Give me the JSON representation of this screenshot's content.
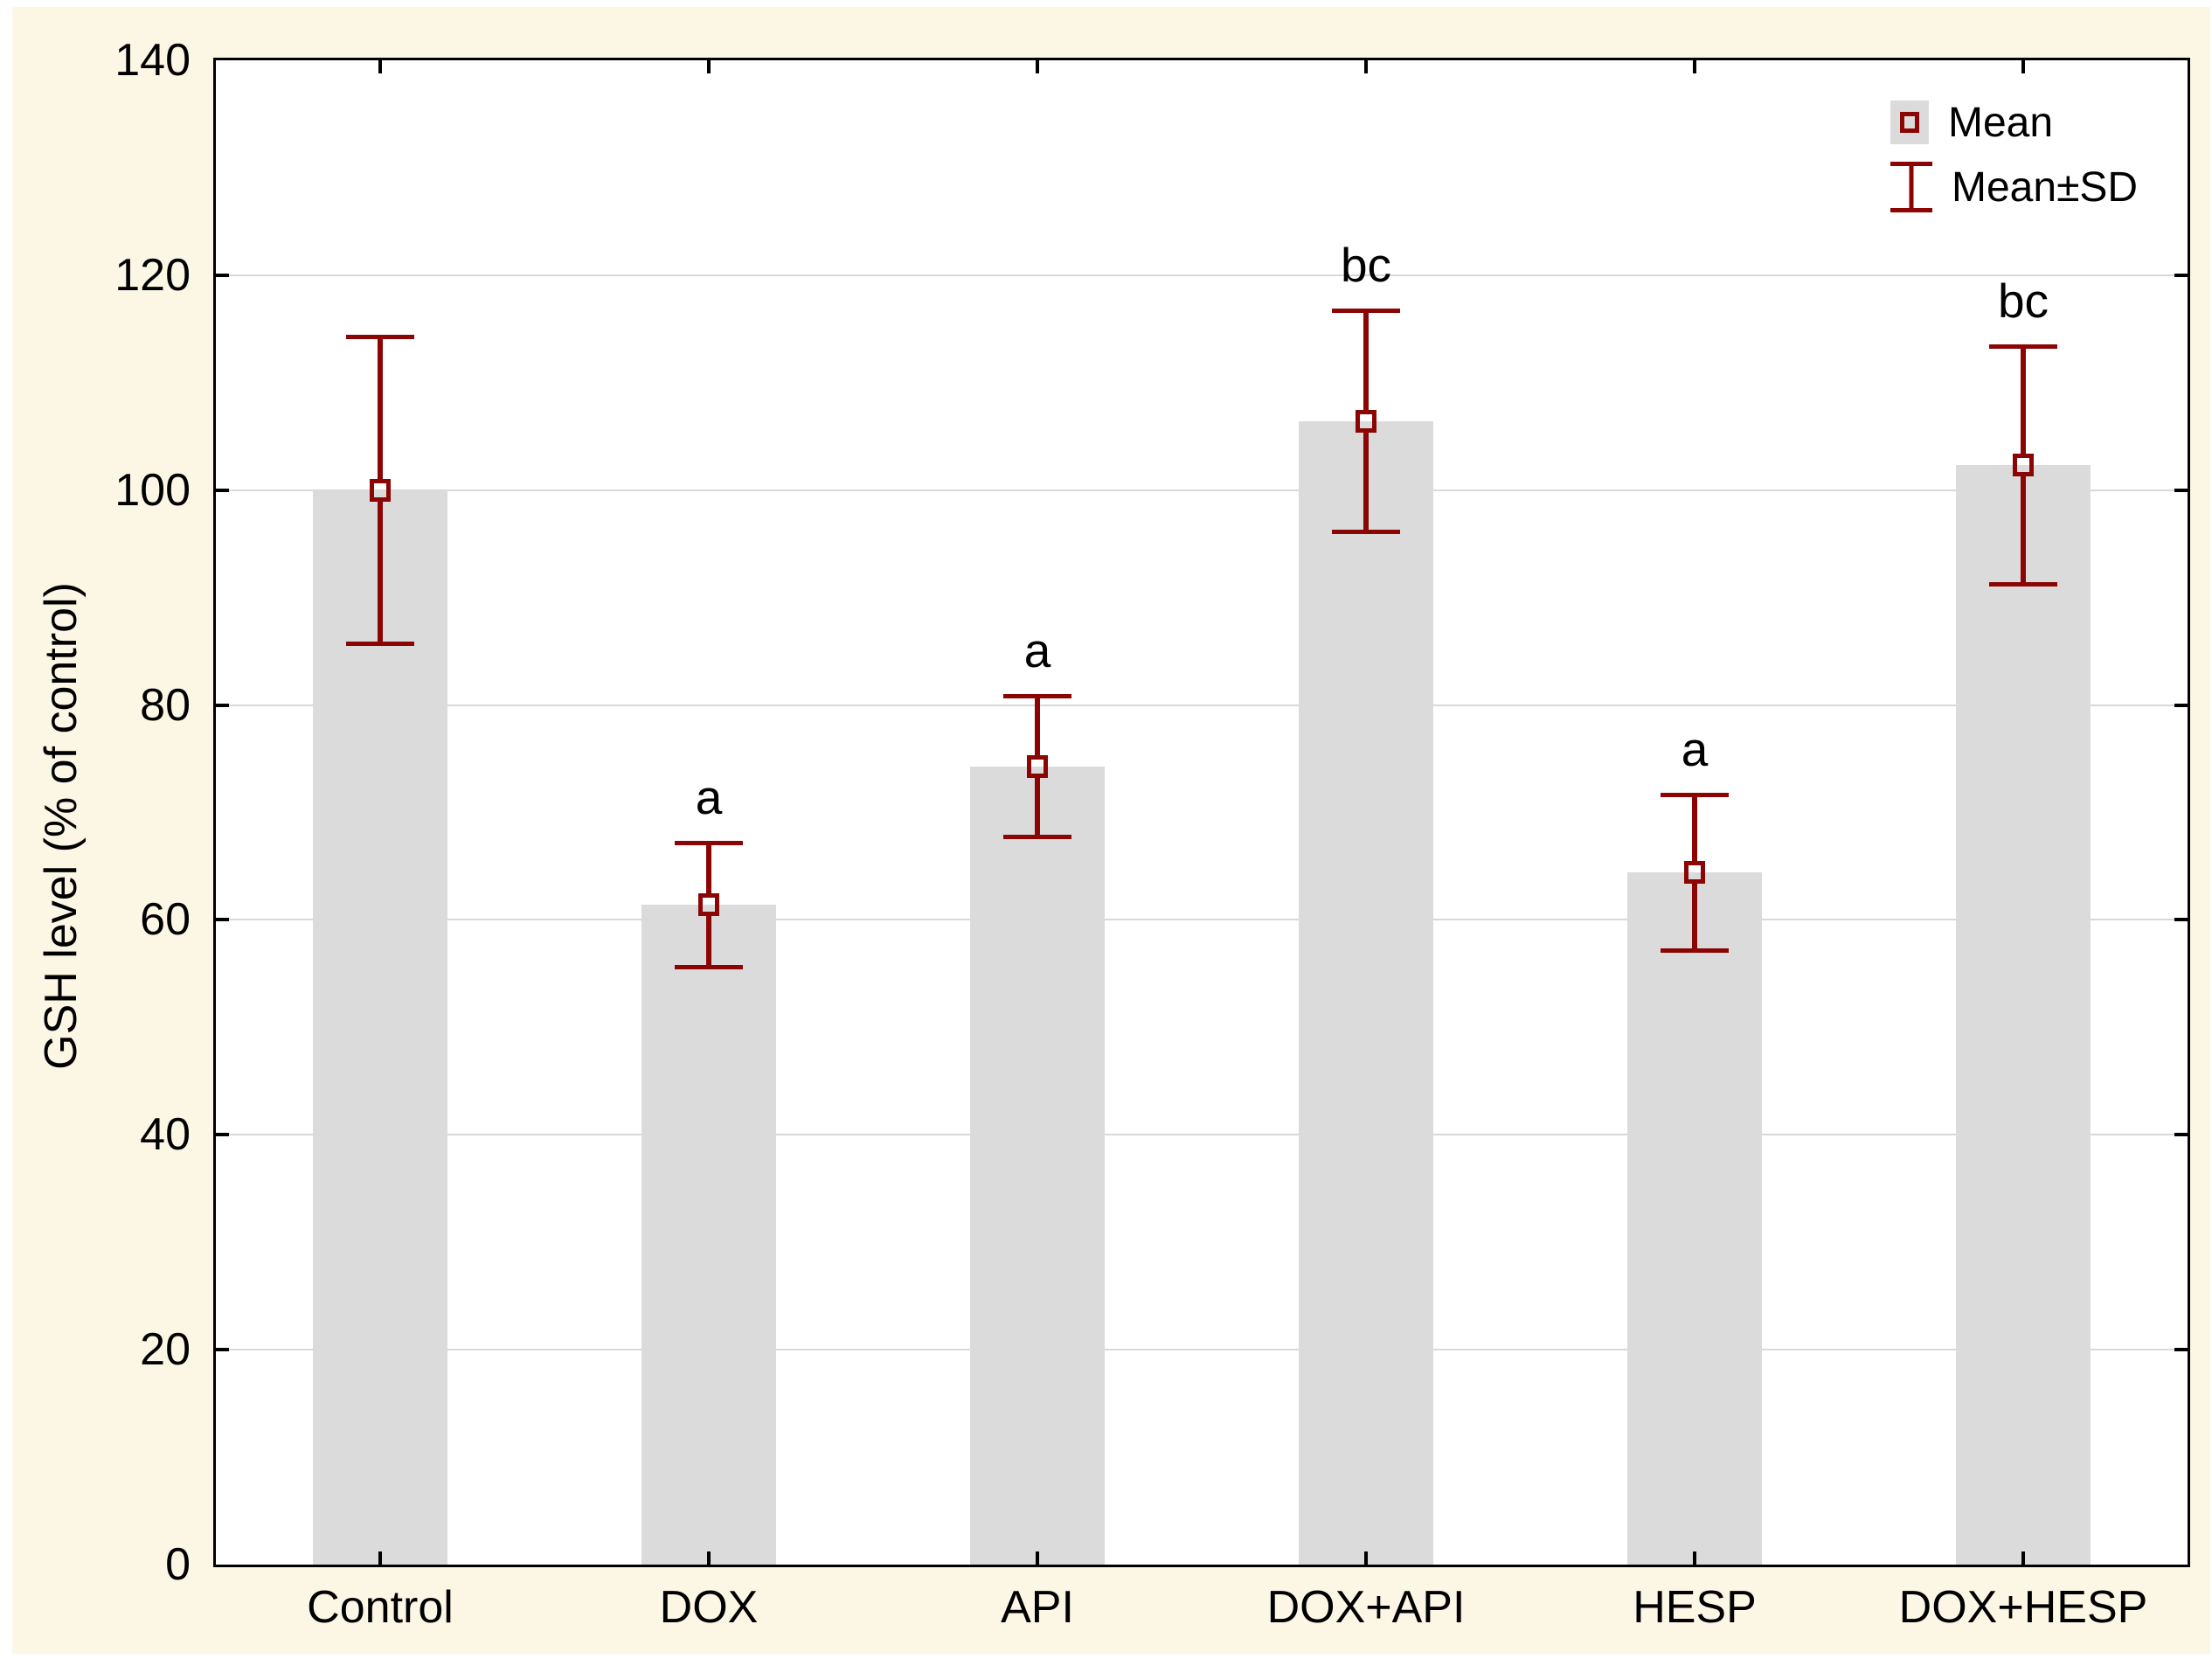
{
  "chart_data": {
    "type": "bar",
    "title": "",
    "xlabel": "",
    "ylabel": "GSH level (% of control)",
    "ylim": [
      0,
      140
    ],
    "yticks": [
      0,
      20,
      40,
      60,
      80,
      100,
      120,
      140
    ],
    "grid": "horizontal gridlines at interior y ticks",
    "legend_position": "top-right inside plot",
    "categories": [
      "Control",
      "DOX",
      "API",
      "DOX+API",
      "HESP",
      "DOX+HESP"
    ],
    "series": [
      {
        "name": "Mean",
        "values": [
          100.0,
          61.4,
          74.3,
          106.4,
          64.4,
          102.3
        ]
      }
    ],
    "error_sd": [
      14.3,
      5.8,
      6.6,
      10.3,
      7.3,
      11.1
    ],
    "significance_labels": [
      "",
      "a",
      "a",
      "bc",
      "a",
      "bc"
    ],
    "legend": [
      {
        "icon": "mean-square-marker",
        "label": "Mean"
      },
      {
        "icon": "error-bar-icon",
        "label": "Mean±SD"
      }
    ]
  },
  "colors": {
    "page_background": "#FFFFFF",
    "panel_background": "#FCF6E5",
    "plot_background": "#FFFFFF",
    "plot_border": "#000000",
    "gridline": "#D8D8D8",
    "bar_fill": "#DBDBDB",
    "error_bar": "#8B0505",
    "text": "#000000"
  }
}
